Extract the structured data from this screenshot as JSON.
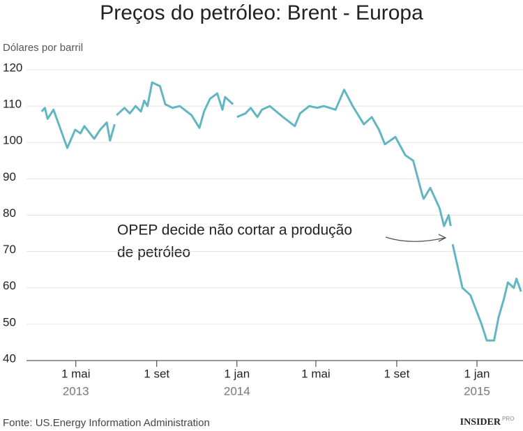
{
  "chart_data": {
    "type": "line",
    "title": "Preços do petróleo: Brent - Europa",
    "y_label": "Dólares por barril",
    "source": "Fonte: US.Energy Information Administration",
    "brand": "INSIDER",
    "brand_sup": "PRO",
    "annotation_lines": [
      "OPEP decide não cortar a produção",
      "de petróleo"
    ],
    "x": [
      "2013-03-10",
      "2013-03-15",
      "2013-03-19",
      "2013-03-28",
      "2013-04-18",
      "2013-04-30",
      "2013-05-08",
      "2013-05-14",
      "2013-05-29",
      "2013-06-07",
      "2013-06-17",
      "2013-06-22",
      "2013-06-29",
      "2013-06-30",
      "2013-07-02",
      "2013-07-14",
      "2013-07-22",
      "2013-07-31",
      "2013-08-08",
      "2013-08-13",
      "2013-08-18",
      "2013-08-25",
      "2013-09-06",
      "2013-09-14",
      "2013-09-25",
      "2013-10-06",
      "2013-10-24",
      "2013-11-05",
      "2013-11-12",
      "2013-11-21",
      "2013-12-02",
      "2013-12-10",
      "2013-12-14",
      "2013-12-26",
      "2013-12-29",
      "2014-01-01",
      "2014-01-14",
      "2014-01-22",
      "2014-02-01",
      "2014-02-08",
      "2014-02-20",
      "2014-03-12",
      "2014-03-30",
      "2014-04-07",
      "2014-04-21",
      "2014-05-03",
      "2014-05-13",
      "2014-05-31",
      "2014-06-13",
      "2014-06-26",
      "2014-07-13",
      "2014-07-25",
      "2014-08-05",
      "2014-08-14",
      "2014-08-30",
      "2014-09-14",
      "2014-09-26",
      "2014-10-10",
      "2014-10-12",
      "2014-10-22",
      "2014-11-05",
      "2014-11-12",
      "2014-11-19",
      "2014-11-22",
      "2014-11-23",
      "2014-11-25",
      "2014-12-10",
      "2014-12-22",
      "2015-01-08",
      "2015-01-16",
      "2015-01-27",
      "2015-02-03",
      "2015-02-11",
      "2015-02-17",
      "2015-02-26",
      "2015-03-02",
      "2015-03-09"
    ],
    "series": [
      {
        "name": "Brent",
        "color": "#62b6c2",
        "values": [
          108.5,
          109.5,
          106.5,
          109,
          98.5,
          103.5,
          102.5,
          104.5,
          101,
          103.5,
          105.5,
          100.5,
          105,
          null,
          107.5,
          109.5,
          108,
          110,
          108.5,
          111.5,
          110,
          116.5,
          115.5,
          110.5,
          109.5,
          110,
          107.5,
          104,
          108.5,
          112,
          113.5,
          109,
          112.5,
          110.5,
          null,
          107,
          108,
          109.5,
          107,
          109,
          110,
          107,
          104.5,
          108,
          110,
          109.5,
          110,
          109,
          114.5,
          110,
          105,
          107,
          103.5,
          99.5,
          101.5,
          96.5,
          95,
          85.5,
          84.5,
          87.5,
          82,
          77,
          80,
          77,
          null,
          72,
          60,
          58,
          50,
          45.5,
          45.5,
          52,
          57,
          61.5,
          60,
          62.5,
          59
        ]
      }
    ],
    "xlim": [
      "2013-02-15",
      "2015-03-12"
    ],
    "xticks": [
      {
        "value": "2013-05-01",
        "label": "1 mai"
      },
      {
        "value": "2013-09-01",
        "label": "1 set"
      },
      {
        "value": "2014-01-01",
        "label": "1 jan"
      },
      {
        "value": "2014-05-01",
        "label": "1 mai"
      },
      {
        "value": "2014-09-01",
        "label": "1 set"
      },
      {
        "value": "2015-01-01",
        "label": "1 jan"
      }
    ],
    "year_labels": [
      {
        "value": "2013-05-01",
        "label": "2013"
      },
      {
        "value": "2014-01-01",
        "label": "2014"
      },
      {
        "value": "2015-01-01",
        "label": "2015"
      }
    ],
    "ylim": [
      40,
      122
    ],
    "yticks": [
      40,
      50,
      60,
      70,
      80,
      90,
      100,
      110,
      120
    ],
    "grid": true
  }
}
